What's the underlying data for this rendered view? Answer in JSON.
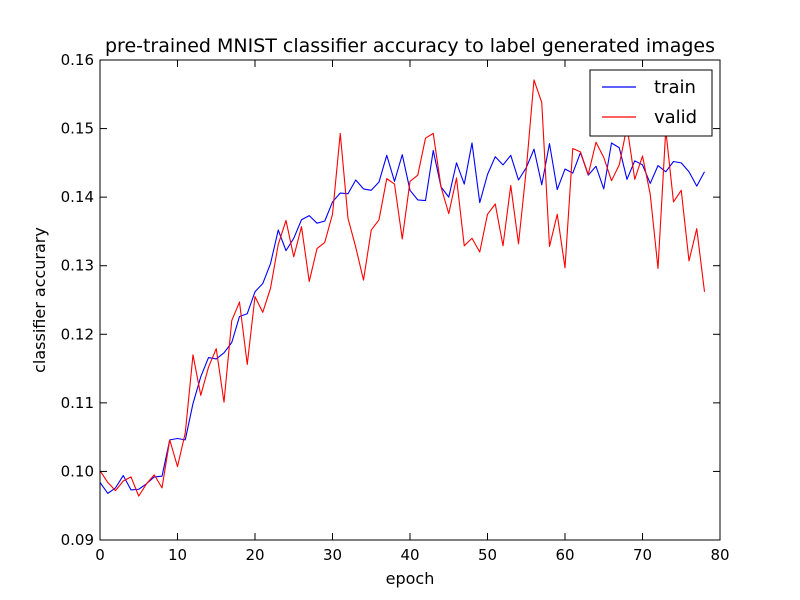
{
  "chart_data": {
    "type": "line",
    "title": "pre-trained MNIST classifier accuracy to label generated images",
    "xlabel": "epoch",
    "ylabel": "classifier accurary",
    "xlim": [
      0,
      80
    ],
    "ylim": [
      0.09,
      0.16
    ],
    "xticks": [
      0,
      10,
      20,
      30,
      40,
      50,
      60,
      70,
      80
    ],
    "yticks": [
      0.09,
      0.1,
      0.11,
      0.12,
      0.13,
      0.14,
      0.15,
      0.16
    ],
    "ytick_labels": [
      "0.09",
      "0.10",
      "0.11",
      "0.12",
      "0.13",
      "0.14",
      "0.15",
      "0.16"
    ],
    "grid": false,
    "legend": "top-right",
    "series": [
      {
        "name": "train",
        "color": "#0000ff",
        "x": [
          0,
          1,
          2,
          3,
          4,
          5,
          6,
          7,
          8,
          9,
          10,
          11,
          12,
          13,
          14,
          15,
          16,
          17,
          18,
          19,
          20,
          21,
          22,
          23,
          24,
          25,
          26,
          27,
          28,
          29,
          30,
          31,
          32,
          33,
          34,
          35,
          36,
          37,
          38,
          39,
          40,
          41,
          42,
          43,
          44,
          45,
          46,
          47,
          48,
          49,
          50,
          51,
          52,
          53,
          54,
          55,
          56,
          57,
          58,
          59,
          60,
          61,
          62,
          63,
          64,
          65,
          66,
          67,
          68,
          69,
          70,
          71,
          72,
          73,
          74,
          75,
          76,
          77,
          78
        ],
        "values": [
          0.0984,
          0.0968,
          0.0976,
          0.0994,
          0.0973,
          0.0974,
          0.0982,
          0.0992,
          0.0993,
          0.1046,
          0.1048,
          0.1046,
          0.1099,
          0.1138,
          0.1166,
          0.1164,
          0.1173,
          0.1188,
          0.1226,
          0.123,
          0.1262,
          0.1274,
          0.1303,
          0.1352,
          0.1322,
          0.134,
          0.1367,
          0.1373,
          0.1362,
          0.1365,
          0.1393,
          0.1406,
          0.1405,
          0.1425,
          0.1412,
          0.141,
          0.1422,
          0.1461,
          0.1423,
          0.1462,
          0.141,
          0.1396,
          0.1395,
          0.1468,
          0.1415,
          0.14,
          0.145,
          0.1419,
          0.1479,
          0.1392,
          0.1433,
          0.1459,
          0.1447,
          0.1461,
          0.1425,
          0.1443,
          0.147,
          0.1418,
          0.1478,
          0.1411,
          0.1441,
          0.1435,
          0.1465,
          0.1432,
          0.1445,
          0.1412,
          0.1479,
          0.1472,
          0.1426,
          0.1453,
          0.1447,
          0.142,
          0.1446,
          0.1437,
          0.1452,
          0.145,
          0.1437,
          0.1416,
          0.1437
        ]
      },
      {
        "name": "valid",
        "color": "#ff0000",
        "x": [
          0,
          1,
          2,
          3,
          4,
          5,
          6,
          7,
          8,
          9,
          10,
          11,
          12,
          13,
          14,
          15,
          16,
          17,
          18,
          19,
          20,
          21,
          22,
          23,
          24,
          25,
          26,
          27,
          28,
          29,
          30,
          31,
          32,
          33,
          34,
          35,
          36,
          37,
          38,
          39,
          40,
          41,
          42,
          43,
          44,
          45,
          46,
          47,
          48,
          49,
          50,
          51,
          52,
          53,
          54,
          55,
          56,
          57,
          58,
          59,
          60,
          61,
          62,
          63,
          64,
          65,
          66,
          67,
          68,
          69,
          70,
          71,
          72,
          73,
          74,
          75,
          76,
          77,
          78
        ],
        "values": [
          0.1001,
          0.0984,
          0.0972,
          0.0986,
          0.0992,
          0.0964,
          0.0982,
          0.0995,
          0.0976,
          0.1046,
          0.1007,
          0.1056,
          0.117,
          0.1111,
          0.1152,
          0.1179,
          0.1101,
          0.122,
          0.1247,
          0.1156,
          0.1255,
          0.1232,
          0.1267,
          0.1331,
          0.1366,
          0.1313,
          0.1357,
          0.1277,
          0.1325,
          0.1334,
          0.1375,
          0.1493,
          0.1369,
          0.1327,
          0.1279,
          0.1352,
          0.1367,
          0.1427,
          0.1419,
          0.1339,
          0.1423,
          0.1432,
          0.1486,
          0.1493,
          0.1415,
          0.1376,
          0.1428,
          0.1329,
          0.134,
          0.132,
          0.1375,
          0.139,
          0.1329,
          0.1417,
          0.1332,
          0.144,
          0.1571,
          0.1538,
          0.1328,
          0.1375,
          0.1297,
          0.1471,
          0.1466,
          0.1433,
          0.148,
          0.1458,
          0.1424,
          0.1447,
          0.1503,
          0.1426,
          0.146,
          0.1404,
          0.1296,
          0.1498,
          0.1393,
          0.141,
          0.1307,
          0.1354,
          0.1262
        ]
      }
    ]
  }
}
